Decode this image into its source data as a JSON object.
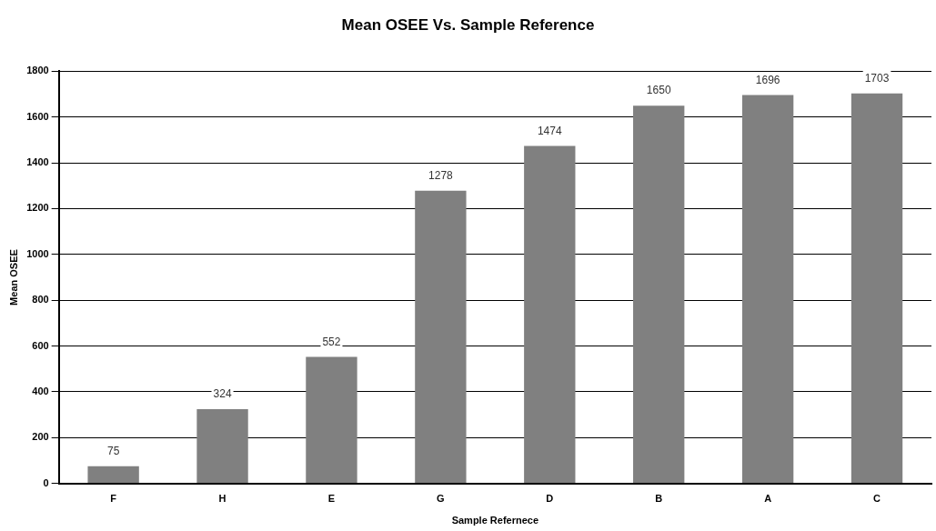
{
  "chart_data": {
    "type": "bar",
    "title": "Mean OSEE Vs. Sample Reference",
    "xlabel": "Sample Refernece",
    "ylabel": "Mean OSEE",
    "categories": [
      "F",
      "H",
      "E",
      "G",
      "D",
      "B",
      "A",
      "C"
    ],
    "values": [
      75,
      324,
      552,
      1278,
      1474,
      1650,
      1696,
      1703
    ],
    "color": "#808080",
    "ylim": [
      0,
      1800
    ],
    "yticks": [
      0,
      200,
      400,
      600,
      800,
      1000,
      1200,
      1400,
      1600,
      1800
    ],
    "grid": "y",
    "data_labels": true,
    "legend": false
  }
}
